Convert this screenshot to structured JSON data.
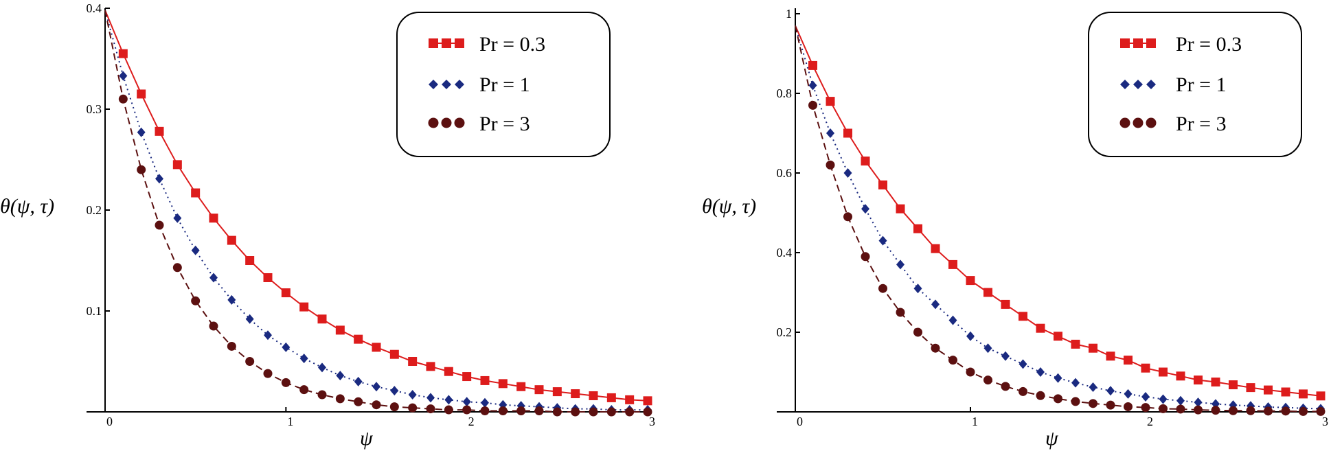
{
  "chart_data": [
    {
      "type": "line",
      "ylabel": "θ(ψ, τ)",
      "xlabel": "ψ",
      "xlim": [
        0,
        3
      ],
      "ylim": [
        0,
        0.4
      ],
      "xticks": [
        0,
        1,
        2,
        3
      ],
      "xtick_labels": [
        "0",
        "1",
        "2",
        "3"
      ],
      "yticks": [
        0.1,
        0.2,
        0.3,
        0.4
      ],
      "ytick_labels": [
        "0.1",
        "0.2",
        "0.3",
        "0.4"
      ],
      "grid": false,
      "legend_position": "top-right",
      "series": [
        {
          "name": "Pr = 0.3",
          "legend_label": "Pr = 0.3",
          "color": "#dd1c1c",
          "marker": "square",
          "line_style": "solid",
          "x": [
            0,
            0.1,
            0.2,
            0.3,
            0.4,
            0.5,
            0.6,
            0.7,
            0.8,
            0.9,
            1.0,
            1.1,
            1.2,
            1.3,
            1.4,
            1.5,
            1.6,
            1.7,
            1.8,
            1.9,
            2.0,
            2.1,
            2.2,
            2.3,
            2.4,
            2.5,
            2.6,
            2.7,
            2.8,
            2.9,
            3.0
          ],
          "values": [
            0.398,
            0.355,
            0.315,
            0.278,
            0.245,
            0.217,
            0.192,
            0.17,
            0.15,
            0.133,
            0.118,
            0.104,
            0.092,
            0.081,
            0.072,
            0.064,
            0.057,
            0.05,
            0.045,
            0.04,
            0.035,
            0.031,
            0.028,
            0.025,
            0.022,
            0.02,
            0.018,
            0.016,
            0.014,
            0.012,
            0.011
          ]
        },
        {
          "name": "Pr = 1",
          "legend_label": "Pr = 1",
          "color": "#1a2a80",
          "marker": "diamond",
          "line_style": "dotted",
          "x": [
            0,
            0.1,
            0.2,
            0.3,
            0.4,
            0.5,
            0.6,
            0.7,
            0.8,
            0.9,
            1.0,
            1.1,
            1.2,
            1.3,
            1.4,
            1.5,
            1.6,
            1.7,
            1.8,
            1.9,
            2.0,
            2.1,
            2.2,
            2.3,
            2.4,
            2.5,
            2.6,
            2.7,
            2.8,
            2.9,
            3.0
          ],
          "values": [
            0.398,
            0.333,
            0.277,
            0.231,
            0.192,
            0.16,
            0.133,
            0.111,
            0.092,
            0.076,
            0.064,
            0.053,
            0.044,
            0.036,
            0.03,
            0.025,
            0.021,
            0.017,
            0.014,
            0.012,
            0.01,
            0.009,
            0.007,
            0.006,
            0.005,
            0.004,
            0.003,
            0.003,
            0.002,
            0.002,
            0.002
          ]
        },
        {
          "name": "Pr = 3",
          "legend_label": "Pr = 3",
          "color": "#5c1010",
          "marker": "circle",
          "line_style": "dashed",
          "x": [
            0,
            0.1,
            0.2,
            0.3,
            0.4,
            0.5,
            0.6,
            0.7,
            0.8,
            0.9,
            1.0,
            1.1,
            1.2,
            1.3,
            1.4,
            1.5,
            1.6,
            1.7,
            1.8,
            1.9,
            2.0,
            2.1,
            2.2,
            2.3,
            2.4,
            2.5,
            2.6,
            2.7,
            2.8,
            2.9,
            3.0
          ],
          "values": [
            0.398,
            0.31,
            0.24,
            0.185,
            0.143,
            0.11,
            0.085,
            0.065,
            0.05,
            0.038,
            0.029,
            0.022,
            0.017,
            0.013,
            0.01,
            0.007,
            0.005,
            0.004,
            0.003,
            0.002,
            0.002,
            0.001,
            0.001,
            0.001,
            0.001,
            0.0,
            0.0,
            0.0,
            0.0,
            0.0,
            0.0
          ]
        }
      ]
    },
    {
      "type": "line",
      "ylabel": "θ(ψ, τ)",
      "xlabel": "ψ",
      "xlim": [
        0,
        3
      ],
      "ylim": [
        0,
        1
      ],
      "xticks": [
        0,
        1,
        2,
        3
      ],
      "xtick_labels": [
        "0",
        "1",
        "2",
        "3"
      ],
      "yticks": [
        0.2,
        0.4,
        0.6,
        0.8,
        1
      ],
      "ytick_labels": [
        "0.2",
        "0.4",
        "0.6",
        "0.8",
        "1"
      ],
      "grid": false,
      "legend_position": "top-right",
      "series": [
        {
          "name": "Pr = 0.3",
          "legend_label": "Pr = 0.3",
          "color": "#dd1c1c",
          "marker": "square",
          "line_style": "solid",
          "x": [
            0,
            0.1,
            0.2,
            0.3,
            0.4,
            0.5,
            0.6,
            0.7,
            0.8,
            0.9,
            1.0,
            1.1,
            1.2,
            1.3,
            1.4,
            1.5,
            1.6,
            1.7,
            1.8,
            1.9,
            2.0,
            2.1,
            2.2,
            2.3,
            2.4,
            2.5,
            2.6,
            2.7,
            2.8,
            2.9,
            3.0
          ],
          "values": [
            0.97,
            0.87,
            0.78,
            0.7,
            0.63,
            0.57,
            0.51,
            0.46,
            0.41,
            0.37,
            0.33,
            0.3,
            0.27,
            0.24,
            0.21,
            0.19,
            0.17,
            0.16,
            0.14,
            0.13,
            0.11,
            0.1,
            0.09,
            0.08,
            0.075,
            0.068,
            0.061,
            0.055,
            0.05,
            0.045,
            0.04
          ]
        },
        {
          "name": "Pr = 1",
          "legend_label": "Pr = 1",
          "color": "#1a2a80",
          "marker": "diamond",
          "line_style": "dotted",
          "x": [
            0,
            0.1,
            0.2,
            0.3,
            0.4,
            0.5,
            0.6,
            0.7,
            0.8,
            0.9,
            1.0,
            1.1,
            1.2,
            1.3,
            1.4,
            1.5,
            1.6,
            1.7,
            1.8,
            1.9,
            2.0,
            2.1,
            2.2,
            2.3,
            2.4,
            2.5,
            2.6,
            2.7,
            2.8,
            2.9,
            3.0
          ],
          "values": [
            0.97,
            0.82,
            0.7,
            0.6,
            0.51,
            0.43,
            0.37,
            0.31,
            0.27,
            0.23,
            0.19,
            0.16,
            0.14,
            0.12,
            0.1,
            0.085,
            0.073,
            0.062,
            0.053,
            0.045,
            0.038,
            0.032,
            0.028,
            0.024,
            0.02,
            0.017,
            0.015,
            0.012,
            0.011,
            0.009,
            0.008
          ]
        },
        {
          "name": "Pr = 3",
          "legend_label": "Pr = 3",
          "color": "#5c1010",
          "marker": "circle",
          "line_style": "dashed",
          "x": [
            0,
            0.1,
            0.2,
            0.3,
            0.4,
            0.5,
            0.6,
            0.7,
            0.8,
            0.9,
            1.0,
            1.1,
            1.2,
            1.3,
            1.4,
            1.5,
            1.6,
            1.7,
            1.8,
            1.9,
            2.0,
            2.1,
            2.2,
            2.3,
            2.4,
            2.5,
            2.6,
            2.7,
            2.8,
            2.9,
            3.0
          ],
          "values": [
            0.97,
            0.77,
            0.62,
            0.49,
            0.39,
            0.31,
            0.25,
            0.2,
            0.16,
            0.13,
            0.1,
            0.08,
            0.064,
            0.051,
            0.041,
            0.033,
            0.026,
            0.021,
            0.017,
            0.013,
            0.011,
            0.008,
            0.007,
            0.005,
            0.004,
            0.003,
            0.003,
            0.002,
            0.002,
            0.001,
            0.001
          ]
        }
      ]
    }
  ]
}
